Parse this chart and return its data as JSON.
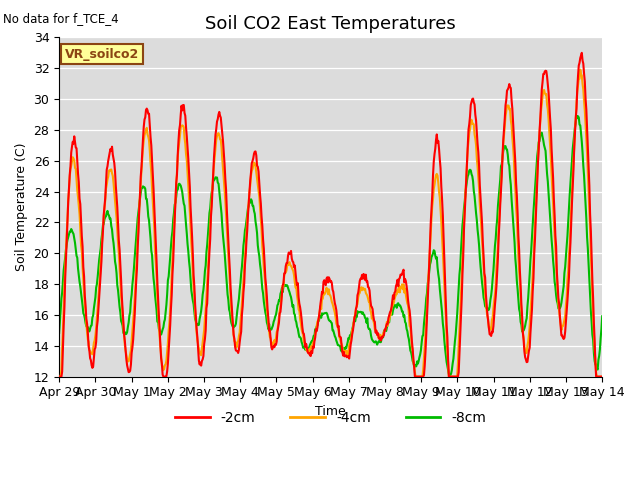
{
  "title": "Soil CO2 East Temperatures",
  "xlabel": "Time",
  "ylabel": "Soil Temperature (C)",
  "no_data_text": "No data for f_TCE_4",
  "legend_label_text": "VR_soilco2",
  "ylim": [
    12,
    34
  ],
  "yticks": [
    12,
    14,
    16,
    18,
    20,
    22,
    24,
    26,
    28,
    30,
    32,
    34
  ],
  "xtick_labels": [
    "Apr 29",
    "Apr 30",
    "May 1",
    "May 2",
    "May 3",
    "May 4",
    "May 5",
    "May 6",
    "May 7",
    "May 8",
    "May 9",
    "May 10",
    "May 11",
    "May 12",
    "May 13",
    "May 14"
  ],
  "color_2cm": "#ff0000",
  "color_4cm": "#ffa500",
  "color_8cm": "#00bb00",
  "plot_bg_color": "#dcdcdc",
  "line_width": 1.5,
  "legend_2cm": "-2cm",
  "legend_4cm": "-4cm",
  "legend_8cm": "-8cm",
  "title_fontsize": 13,
  "axis_fontsize": 9,
  "tick_fontsize": 9
}
